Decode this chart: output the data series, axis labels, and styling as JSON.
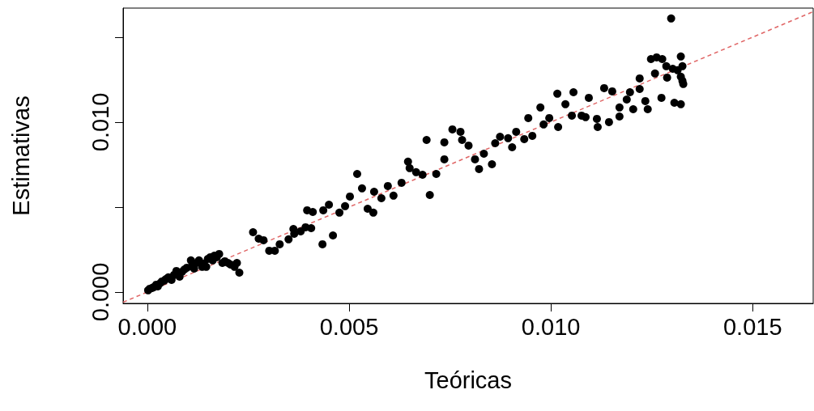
{
  "chart_data": {
    "type": "scatter",
    "xlabel": "Teóricas",
    "ylabel": "Estimativas",
    "xlim": [
      -0.0006,
      0.0165
    ],
    "ylim": [
      -0.00067,
      0.01671
    ],
    "xticks": [
      {
        "value": 0,
        "label": "0.000"
      },
      {
        "value": 0.005,
        "label": "0.005"
      },
      {
        "value": 0.01,
        "label": "0.010"
      },
      {
        "value": 0.015,
        "label": "0.015"
      }
    ],
    "yticks": [
      {
        "value": 0,
        "label": "0.000"
      },
      {
        "value": 0.005,
        "label": null
      },
      {
        "value": 0.01,
        "label": "0.010"
      },
      {
        "value": 0.015,
        "label": null
      }
    ],
    "grid": false,
    "marker": "circle",
    "series": [
      {
        "color": "#000000",
        "x": [
          2e-05,
          6e-05,
          0.00012,
          0.00016,
          0.00022,
          0.00026,
          0.00032,
          0.00036,
          0.00042,
          0.00046,
          0.00052,
          0.0006,
          0.00066,
          0.00072,
          0.0008,
          0.00086,
          0.00092,
          0.00098,
          0.00108,
          0.00112,
          0.00116,
          0.00122,
          0.00128,
          0.00136,
          0.0014,
          0.00146,
          0.0015,
          0.00156,
          0.00162,
          0.00166,
          0.00172,
          0.00178,
          0.00186,
          0.00192,
          0.002,
          0.00206,
          0.00216,
          0.00222,
          0.00228,
          0.00262,
          0.00276,
          0.00288,
          0.00302,
          0.00316,
          0.00328,
          0.0035,
          0.00362,
          0.00364,
          0.0038,
          0.00392,
          0.00406,
          0.00396,
          0.0041,
          0.00436,
          0.0045,
          0.00434,
          0.0046,
          0.0049,
          0.00476,
          0.00502,
          0.0052,
          0.00532,
          0.00546,
          0.0056,
          0.00562,
          0.0058,
          0.00596,
          0.0061,
          0.0063,
          0.00646,
          0.0065,
          0.00666,
          0.00682,
          0.00692,
          0.007,
          0.00716,
          0.00736,
          0.00736,
          0.00756,
          0.00776,
          0.0078,
          0.00796,
          0.00812,
          0.00822,
          0.00834,
          0.00854,
          0.00862,
          0.00874,
          0.00894,
          0.00904,
          0.00914,
          0.00934,
          0.00944,
          0.00954,
          0.00974,
          0.00982,
          0.00996,
          0.01016,
          0.01018,
          0.01036,
          0.01052,
          0.01056,
          0.01076,
          0.01086,
          0.01094,
          0.01114,
          0.01116,
          0.01132,
          0.01144,
          0.01152,
          0.0117,
          0.0117,
          0.01188,
          0.01196,
          0.01204,
          0.0122,
          0.0122,
          0.01234,
          0.0124,
          0.01248,
          0.01258,
          0.01262,
          0.01276,
          0.01274,
          0.01286,
          0.01288,
          0.01298,
          0.01302,
          0.01306,
          0.01314,
          0.01322,
          0.01322,
          0.01326,
          0.01322,
          0.01326,
          0.01328
        ],
        "values": [
          0.0001,
          0.00019,
          0.00024,
          0.00029,
          0.00043,
          0.00033,
          0.00052,
          0.00062,
          0.00067,
          0.00076,
          0.00086,
          0.00071,
          0.001,
          0.00124,
          0.0009,
          0.00119,
          0.00133,
          0.00143,
          0.00186,
          0.00162,
          0.00138,
          0.00171,
          0.00186,
          0.00148,
          0.00167,
          0.00148,
          0.00195,
          0.00205,
          0.00186,
          0.00214,
          0.00205,
          0.00224,
          0.00171,
          0.00181,
          0.00171,
          0.00162,
          0.00148,
          0.00171,
          0.00114,
          0.00352,
          0.00314,
          0.00305,
          0.00243,
          0.00243,
          0.00281,
          0.0031,
          0.00371,
          0.00343,
          0.00357,
          0.00381,
          0.00376,
          0.00481,
          0.00471,
          0.00481,
          0.00514,
          0.00281,
          0.00333,
          0.00505,
          0.00467,
          0.00562,
          0.00695,
          0.0061,
          0.0049,
          0.00467,
          0.0059,
          0.00552,
          0.00624,
          0.00567,
          0.00643,
          0.00767,
          0.00729,
          0.00705,
          0.0069,
          0.00895,
          0.00571,
          0.00695,
          0.00881,
          0.00781,
          0.00957,
          0.00943,
          0.00895,
          0.00862,
          0.00781,
          0.00724,
          0.00814,
          0.00752,
          0.00876,
          0.00914,
          0.00905,
          0.00852,
          0.00943,
          0.009,
          0.01024,
          0.00919,
          0.01086,
          0.00986,
          0.01024,
          0.01167,
          0.00971,
          0.01105,
          0.01038,
          0.01176,
          0.01038,
          0.01029,
          0.01143,
          0.01019,
          0.00971,
          0.012,
          0.01,
          0.01181,
          0.01033,
          0.01086,
          0.01133,
          0.01176,
          0.01076,
          0.01257,
          0.01195,
          0.01124,
          0.01076,
          0.01371,
          0.01286,
          0.01381,
          0.01371,
          0.01143,
          0.01329,
          0.01262,
          0.0161,
          0.01314,
          0.01114,
          0.01305,
          0.01386,
          0.01105,
          0.01329,
          0.01267,
          0.01243,
          0.01224
        ]
      },
      {
        "type": "line",
        "color": "#e06666",
        "line_style": "dashed",
        "marker": "none",
        "x": [
          -0.0006,
          0.0165
        ],
        "values": [
          -0.0006,
          0.0165
        ]
      }
    ]
  }
}
